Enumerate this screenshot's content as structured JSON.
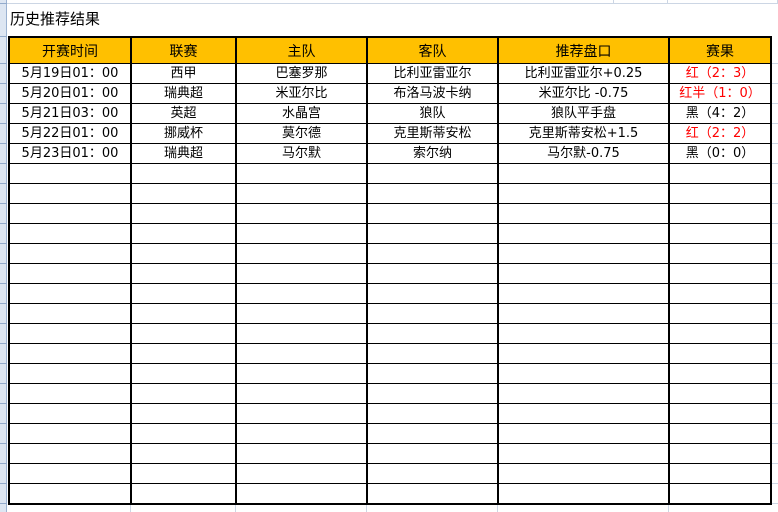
{
  "title": "历史推荐结果",
  "colors": {
    "header_bg": "#ffc000",
    "result_red": "#ff0000",
    "result_black": "#000000",
    "row_strip_bg": "#dde6f2",
    "faint_gridline": "#ccd6e4",
    "table_border": "#000000"
  },
  "table": {
    "columns": [
      {
        "key": "time",
        "label": "开赛时间"
      },
      {
        "key": "league",
        "label": "联赛"
      },
      {
        "key": "home",
        "label": "主队"
      },
      {
        "key": "away",
        "label": "客队"
      },
      {
        "key": "handicap",
        "label": "推荐盘口"
      },
      {
        "key": "result",
        "label": "赛果"
      }
    ],
    "rows": [
      {
        "time": "5月19日01：00",
        "league": "西甲",
        "home": "巴塞罗那",
        "away": "比利亚雷亚尔",
        "handicap": "比利亚雷亚尔+0.25",
        "result": "红（2：3）",
        "result_color": "red"
      },
      {
        "time": "5月20日01：00",
        "league": "瑞典超",
        "home": "米亚尔比",
        "away": "布洛马波卡纳",
        "handicap": "米亚尔比 -0.75",
        "result": "红半（1：0）",
        "result_color": "red"
      },
      {
        "time": "5月21日03：00",
        "league": "英超",
        "home": "水晶宫",
        "away": "狼队",
        "handicap": "狼队平手盘",
        "result": "黑（4：2）",
        "result_color": "black"
      },
      {
        "time": "5月22日01：00",
        "league": "挪威杯",
        "home": "莫尔德",
        "away": "克里斯蒂安松",
        "handicap": "克里斯蒂安松+1.5",
        "result": "红（2：2）",
        "result_color": "red"
      },
      {
        "time": "5月23日01：00",
        "league": "瑞典超",
        "home": "马尔默",
        "away": "索尔纳",
        "handicap": "马尔默-0.75",
        "result": "黑（0：0）",
        "result_color": "black"
      }
    ],
    "empty_row_count": 17
  }
}
